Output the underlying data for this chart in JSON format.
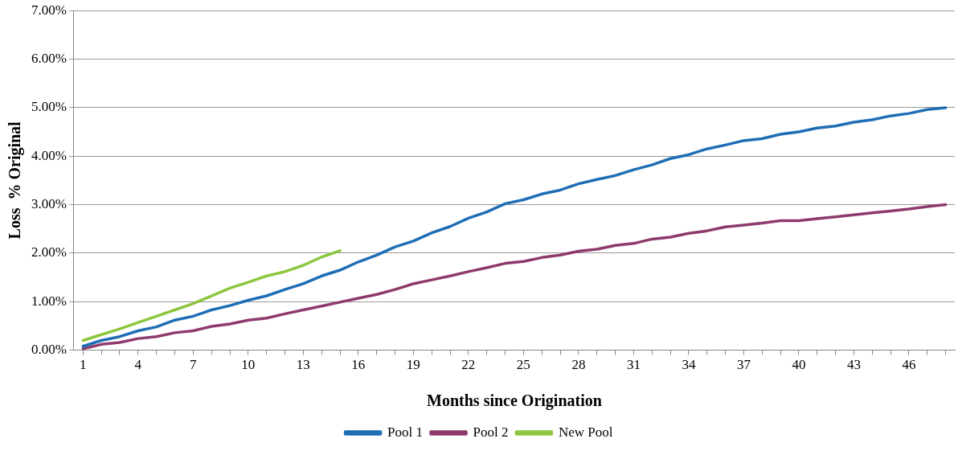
{
  "chart_data": {
    "type": "line",
    "xlabel": "Months since Origination",
    "ylabel": "Loss  % Original",
    "categories": [
      "1",
      null,
      null,
      "4",
      null,
      null,
      "7",
      null,
      null,
      "10",
      null,
      null,
      "13",
      null,
      null,
      "16",
      null,
      null,
      "19",
      null,
      null,
      "22",
      null,
      null,
      "25",
      null,
      null,
      "28",
      null,
      null,
      "31",
      null,
      null,
      "34",
      null,
      null,
      "37",
      null,
      null,
      "40",
      null,
      null,
      "43",
      null,
      null,
      "46",
      null,
      null
    ],
    "series": [
      {
        "name": "Pool 1",
        "color": "#1f6eb5",
        "values": [
          0.08,
          0.2,
          0.28,
          0.4,
          0.48,
          0.62,
          0.7,
          0.83,
          0.92,
          1.03,
          1.12,
          1.25,
          1.37,
          1.53,
          1.65,
          1.82,
          1.96,
          2.13,
          2.25,
          2.42,
          2.55,
          2.72,
          2.85,
          3.02,
          3.1,
          3.22,
          3.3,
          3.43,
          3.52,
          3.6,
          3.72,
          3.82,
          3.95,
          4.03,
          4.15,
          4.23,
          4.32,
          4.36,
          4.45,
          4.5,
          4.58,
          4.62,
          4.7,
          4.75,
          4.83,
          4.88,
          4.96,
          5.0
        ]
      },
      {
        "name": "Pool 2",
        "color": "#8e3a6c",
        "values": [
          0.03,
          0.12,
          0.16,
          0.24,
          0.28,
          0.36,
          0.4,
          0.49,
          0.54,
          0.62,
          0.66,
          0.75,
          0.83,
          0.91,
          0.99,
          1.07,
          1.15,
          1.25,
          1.37,
          1.45,
          1.53,
          1.62,
          1.7,
          1.79,
          1.83,
          1.91,
          1.96,
          2.04,
          2.08,
          2.16,
          2.2,
          2.29,
          2.33,
          2.41,
          2.46,
          2.54,
          2.58,
          2.62,
          2.67,
          2.67,
          2.71,
          2.75,
          2.79,
          2.83,
          2.87,
          2.91,
          2.96,
          3.0
        ]
      },
      {
        "name": "New Pool",
        "color": "#8dc63f",
        "values": [
          0.2,
          0.32,
          0.44,
          0.57,
          0.7,
          0.83,
          0.96,
          1.12,
          1.28,
          1.4,
          1.53,
          1.62,
          1.75,
          1.92,
          2.05,
          null,
          null,
          null,
          null,
          null,
          null,
          null,
          null,
          null,
          null,
          null,
          null,
          null,
          null,
          null,
          null,
          null,
          null,
          null,
          null,
          null,
          null,
          null,
          null,
          null,
          null,
          null,
          null,
          null,
          null,
          null,
          null,
          null
        ]
      }
    ],
    "ylim": [
      0,
      7
    ],
    "yticks": [
      {
        "value": 0,
        "label": "0.00%"
      },
      {
        "value": 1,
        "label": "1.00%"
      },
      {
        "value": 2,
        "label": "2.00%"
      },
      {
        "value": 3,
        "label": "3.00%"
      },
      {
        "value": 4,
        "label": "4.00%"
      },
      {
        "value": 5,
        "label": "5.00%"
      },
      {
        "value": 6,
        "label": "6.00%"
      },
      {
        "value": 7,
        "label": "7.00%"
      }
    ],
    "grid": "y",
    "legend": "bottom",
    "marker": "none",
    "line_style": "solid"
  }
}
